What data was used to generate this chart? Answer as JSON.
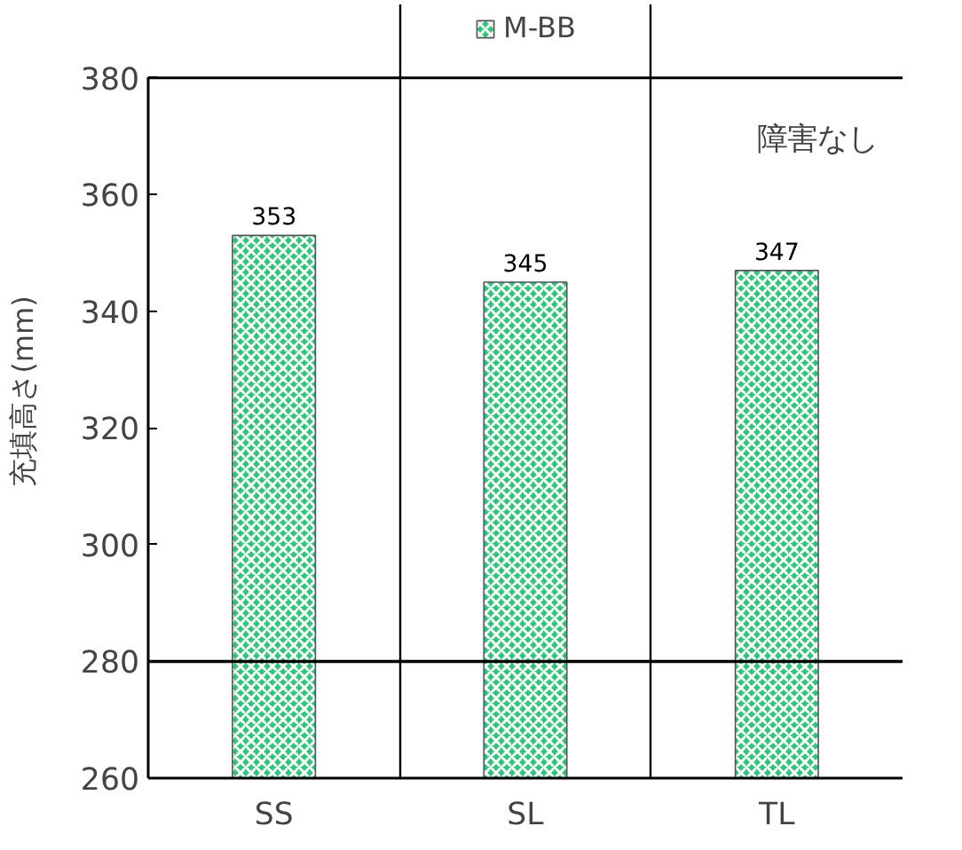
{
  "chart_data": {
    "type": "bar",
    "ylabel": "充填高さ(mm)",
    "categories": [
      "SS",
      "SL",
      "TL"
    ],
    "series": [
      {
        "name": "M-BB",
        "color": "#33c37a",
        "values": [
          353,
          345,
          347
        ]
      }
    ],
    "ylim": [
      260,
      380
    ],
    "yticks": [
      260,
      280,
      300,
      320,
      340,
      360,
      380
    ],
    "ref_lines": [
      {
        "axis": "y",
        "value": 280,
        "label": null
      }
    ],
    "annotations": [
      "障害なし"
    ],
    "data_labels": true,
    "legend": "top",
    "grid": false
  }
}
